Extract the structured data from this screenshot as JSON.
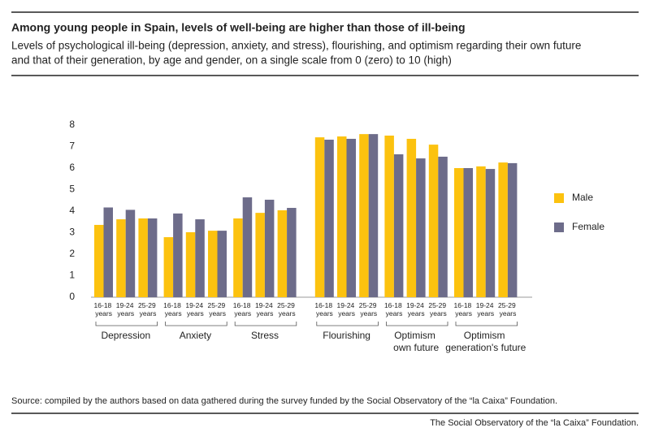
{
  "chart_data": {
    "type": "bar",
    "title": "Among young people in Spain, levels of well-being are higher than those of ill-being",
    "subtitle": [
      "Levels of psychological ill-being (depression, anxiety, and stress), flourishing, and optimism regarding their own future",
      "and that of their generation, by age and gender, on a single scale from 0 (zero) to 10 (high)"
    ],
    "groups": [
      {
        "label": "Depression",
        "categories": [
          "16-18 years",
          "19-24 years",
          "25-29 years"
        ]
      },
      {
        "label": "Anxiety",
        "categories": [
          "16-18 years",
          "19-24 years",
          "25-29 years"
        ]
      },
      {
        "label": "Stress",
        "categories": [
          "16-18 years",
          "19-24 years",
          "25-29 years"
        ]
      },
      {
        "label": "Flourishing",
        "categories": [
          "16-18 years",
          "19-24 years",
          "25-29 years"
        ]
      },
      {
        "label": "Optimism own future",
        "categories": [
          "16-18 years",
          "19-24 years",
          "25-29 years"
        ]
      },
      {
        "label": "Optimism generation's future",
        "categories": [
          "16-18 years",
          "19-24 years",
          "25-29 years"
        ]
      }
    ],
    "series": [
      {
        "name": "Male",
        "color": "#fcc20f",
        "values": [
          3.36,
          3.62,
          3.66,
          2.79,
          3.02,
          3.09,
          3.66,
          3.92,
          4.04,
          7.43,
          7.47,
          7.58,
          7.51,
          7.36,
          7.09,
          6.0,
          6.08,
          6.26
        ]
      },
      {
        "name": "Female",
        "color": "#6d6c8a",
        "values": [
          4.17,
          4.06,
          3.66,
          3.89,
          3.62,
          3.09,
          4.64,
          4.53,
          4.15,
          7.32,
          7.36,
          7.58,
          6.64,
          6.45,
          6.53,
          6.0,
          5.96,
          6.23
        ]
      }
    ],
    "ylim": [
      0,
      8
    ],
    "yticks": [
      0,
      1,
      2,
      3,
      4,
      5,
      6,
      7,
      8
    ],
    "grid": false,
    "source": "Source: compiled by the authors based on data gathered during the survey funded by the Social Observatory of the “la Caixa” Foundation.",
    "footer": "The Social Observatory of the “la Caixa” Foundation."
  }
}
